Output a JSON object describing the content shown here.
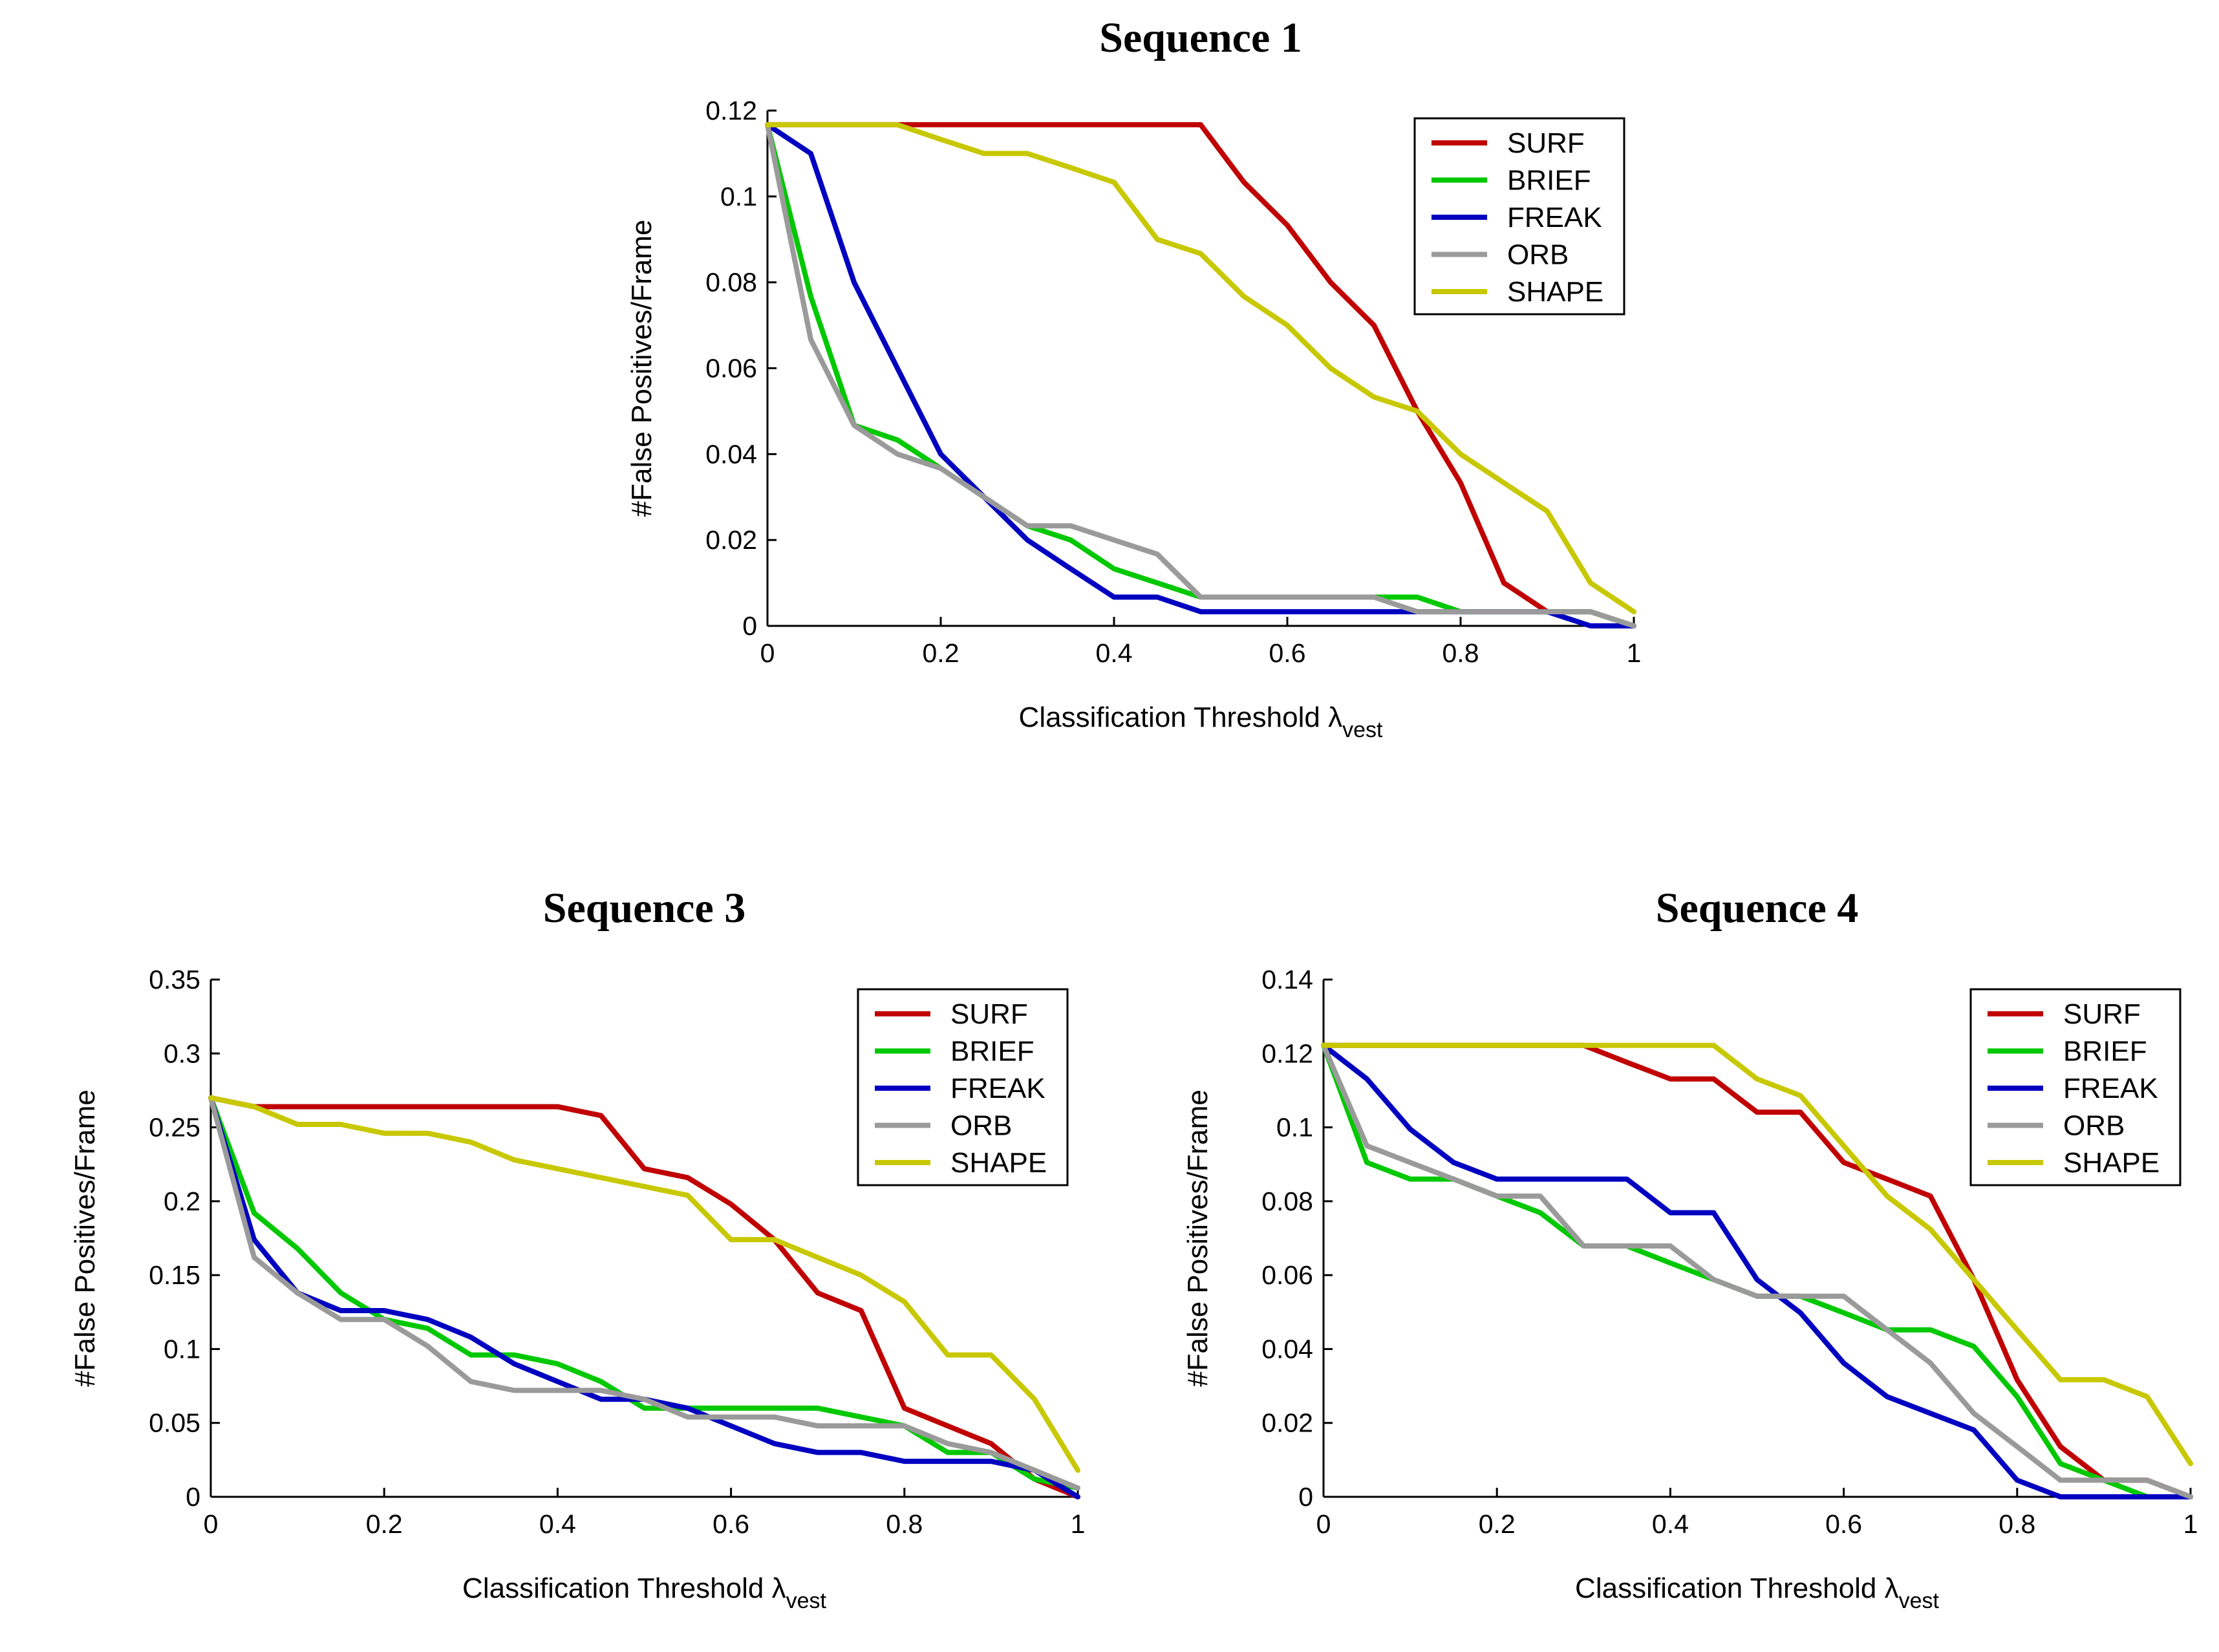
{
  "colors": {
    "SURF": "#c00000",
    "BRIEF": "#00c800",
    "FREAK": "#0000c0",
    "ORB": "#9a9a9a",
    "SHAPE": "#c8c800"
  },
  "chart_data": [
    {
      "type": "line",
      "title": "Sequence 1",
      "xlabel": "Classification Threshold λ",
      "xlabel_subscript": "vest",
      "ylabel": "#False Positives/Frame",
      "xlim": [
        0,
        1
      ],
      "ylim": [
        0,
        0.12
      ],
      "xticks": [
        0,
        0.2,
        0.4,
        0.6,
        0.8,
        1
      ],
      "xtick_labels": [
        "0",
        "0.2",
        "0.4",
        "0.6",
        "0.8",
        "1"
      ],
      "yticks": [
        0,
        0.02,
        0.04,
        0.06,
        0.08,
        0.1,
        0.12
      ],
      "ytick_labels": [
        "0",
        "0.02",
        "0.04",
        "0.06",
        "0.08",
        "0.1",
        "0.12"
      ],
      "legend_position": "top-right",
      "x": [
        0,
        0.05,
        0.1,
        0.15,
        0.2,
        0.25,
        0.3,
        0.35,
        0.4,
        0.45,
        0.5,
        0.55,
        0.6,
        0.65,
        0.7,
        0.75,
        0.8,
        0.85,
        0.9,
        0.95,
        1
      ],
      "series": [
        {
          "name": "SURF",
          "values": [
            0.1167,
            0.1167,
            0.1167,
            0.1167,
            0.1167,
            0.1167,
            0.1167,
            0.1167,
            0.1167,
            0.1167,
            0.1167,
            0.1033,
            0.0933,
            0.08,
            0.07,
            0.05,
            0.0333,
            0.01,
            0.0033,
            0.0033,
            0
          ]
        },
        {
          "name": "BRIEF",
          "values": [
            0.1167,
            0.0767,
            0.0467,
            0.0433,
            0.0367,
            0.03,
            0.0233,
            0.02,
            0.0133,
            0.01,
            0.0067,
            0.0067,
            0.0067,
            0.0067,
            0.0067,
            0.0067,
            0.0033,
            0.0033,
            0.0033,
            0.0033,
            0
          ]
        },
        {
          "name": "FREAK",
          "values": [
            0.1167,
            0.11,
            0.08,
            0.06,
            0.04,
            0.03,
            0.02,
            0.0133,
            0.0067,
            0.0067,
            0.0033,
            0.0033,
            0.0033,
            0.0033,
            0.0033,
            0.0033,
            0.0033,
            0.0033,
            0.0033,
            0,
            0
          ]
        },
        {
          "name": "ORB",
          "values": [
            0.1167,
            0.0667,
            0.0467,
            0.04,
            0.0367,
            0.03,
            0.0233,
            0.0233,
            0.02,
            0.0167,
            0.0067,
            0.0067,
            0.0067,
            0.0067,
            0.0067,
            0.0033,
            0.0033,
            0.0033,
            0.0033,
            0.0033,
            0
          ]
        },
        {
          "name": "SHAPE",
          "values": [
            0.1167,
            0.1167,
            0.1167,
            0.1167,
            0.1133,
            0.11,
            0.11,
            0.1067,
            0.1033,
            0.09,
            0.0867,
            0.0767,
            0.07,
            0.06,
            0.0533,
            0.05,
            0.04,
            0.0333,
            0.0267,
            0.01,
            0.0033
          ]
        }
      ]
    },
    {
      "type": "line",
      "title": "Sequence 3",
      "xlabel": "Classification Threshold λ",
      "xlabel_subscript": "vest",
      "ylabel": "#False Positives/Frame",
      "xlim": [
        0,
        1
      ],
      "ylim": [
        0,
        0.35
      ],
      "xticks": [
        0,
        0.2,
        0.4,
        0.6,
        0.8,
        1
      ],
      "xtick_labels": [
        "0",
        "0.2",
        "0.4",
        "0.6",
        "0.8",
        "1"
      ],
      "yticks": [
        0,
        0.05,
        0.1,
        0.15,
        0.2,
        0.25,
        0.3,
        0.35
      ],
      "ytick_labels": [
        "0",
        "0.05",
        "0.1",
        "0.15",
        "0.2",
        "0.25",
        "0.3",
        "0.35"
      ],
      "legend_position": "top-right",
      "x": [
        0,
        0.05,
        0.1,
        0.15,
        0.2,
        0.25,
        0.3,
        0.35,
        0.4,
        0.45,
        0.5,
        0.55,
        0.6,
        0.65,
        0.7,
        0.75,
        0.8,
        0.85,
        0.9,
        0.95,
        1
      ],
      "series": [
        {
          "name": "SURF",
          "values": [
            0.27,
            0.264,
            0.264,
            0.264,
            0.264,
            0.264,
            0.264,
            0.264,
            0.264,
            0.258,
            0.222,
            0.216,
            0.198,
            0.174,
            0.138,
            0.126,
            0.06,
            0.048,
            0.036,
            0.012,
            0
          ]
        },
        {
          "name": "BRIEF",
          "values": [
            0.27,
            0.192,
            0.168,
            0.138,
            0.12,
            0.114,
            0.096,
            0.096,
            0.09,
            0.078,
            0.06,
            0.06,
            0.06,
            0.06,
            0.06,
            0.054,
            0.048,
            0.03,
            0.03,
            0.012,
            0.006
          ]
        },
        {
          "name": "FREAK",
          "values": [
            0.27,
            0.174,
            0.138,
            0.126,
            0.126,
            0.12,
            0.108,
            0.09,
            0.078,
            0.066,
            0.066,
            0.06,
            0.048,
            0.036,
            0.03,
            0.03,
            0.024,
            0.024,
            0.024,
            0.018,
            0
          ]
        },
        {
          "name": "ORB",
          "values": [
            0.27,
            0.162,
            0.138,
            0.12,
            0.12,
            0.102,
            0.078,
            0.072,
            0.072,
            0.072,
            0.066,
            0.054,
            0.054,
            0.054,
            0.048,
            0.048,
            0.048,
            0.036,
            0.03,
            0.018,
            0.006
          ]
        },
        {
          "name": "SHAPE",
          "values": [
            0.27,
            0.264,
            0.252,
            0.252,
            0.246,
            0.246,
            0.24,
            0.228,
            0.222,
            0.216,
            0.21,
            0.204,
            0.174,
            0.174,
            0.162,
            0.15,
            0.132,
            0.096,
            0.096,
            0.066,
            0.018
          ]
        }
      ]
    },
    {
      "type": "line",
      "title": "Sequence 4",
      "xlabel": "Classification Threshold λ",
      "xlabel_subscript": "vest",
      "ylabel": "#False Positives/Frame",
      "xlim": [
        0,
        1
      ],
      "ylim": [
        0,
        0.14
      ],
      "xticks": [
        0,
        0.2,
        0.4,
        0.6,
        0.8,
        1
      ],
      "xtick_labels": [
        "0",
        "0.2",
        "0.4",
        "0.6",
        "0.8",
        "1"
      ],
      "yticks": [
        0,
        0.02,
        0.04,
        0.06,
        0.08,
        0.1,
        0.12,
        0.14
      ],
      "ytick_labels": [
        "0",
        "0.02",
        "0.04",
        "0.06",
        "0.08",
        "0.1",
        "0.12",
        "0.14"
      ],
      "legend_position": "top-right",
      "x": [
        0,
        0.05,
        0.1,
        0.15,
        0.2,
        0.25,
        0.3,
        0.35,
        0.4,
        0.45,
        0.5,
        0.55,
        0.6,
        0.65,
        0.7,
        0.75,
        0.8,
        0.85,
        0.9,
        0.95,
        1
      ],
      "series": [
        {
          "name": "SURF",
          "values": [
            0.1222,
            0.1222,
            0.1222,
            0.1222,
            0.1222,
            0.1222,
            0.1222,
            0.1176,
            0.1131,
            0.1131,
            0.1041,
            0.1041,
            0.0905,
            0.086,
            0.0814,
            0.0588,
            0.0317,
            0.0136,
            0.0045,
            0.0045,
            0
          ]
        },
        {
          "name": "BRIEF",
          "values": [
            0.1222,
            0.0905,
            0.086,
            0.086,
            0.0814,
            0.0769,
            0.0679,
            0.0679,
            0.0633,
            0.0588,
            0.0543,
            0.0543,
            0.0498,
            0.0452,
            0.0452,
            0.0407,
            0.0271,
            0.009,
            0.0045,
            0,
            0
          ]
        },
        {
          "name": "FREAK",
          "values": [
            0.1222,
            0.1131,
            0.0995,
            0.0905,
            0.086,
            0.086,
            0.086,
            0.086,
            0.0769,
            0.0769,
            0.0588,
            0.0498,
            0.0362,
            0.0271,
            0.0226,
            0.0181,
            0.0045,
            0,
            0,
            0,
            0
          ]
        },
        {
          "name": "ORB",
          "values": [
            0.1222,
            0.095,
            0.0905,
            0.086,
            0.0814,
            0.0814,
            0.0679,
            0.0679,
            0.0679,
            0.0588,
            0.0543,
            0.0543,
            0.0543,
            0.0452,
            0.0362,
            0.0226,
            0.0136,
            0.0045,
            0.0045,
            0.0045,
            0
          ]
        },
        {
          "name": "SHAPE",
          "values": [
            0.1222,
            0.1222,
            0.1222,
            0.1222,
            0.1222,
            0.1222,
            0.1222,
            0.1222,
            0.1222,
            0.1222,
            0.1131,
            0.1086,
            0.095,
            0.0814,
            0.0724,
            0.0588,
            0.0452,
            0.0317,
            0.0317,
            0.0271,
            0.009
          ]
        }
      ]
    }
  ]
}
